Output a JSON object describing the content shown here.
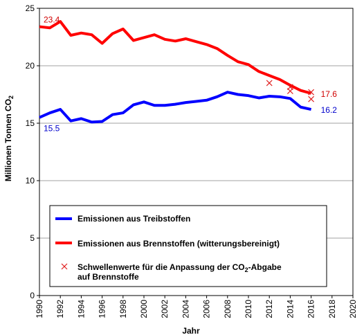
{
  "chart_data": {
    "type": "line",
    "xlabel": "Jahr",
    "ylabel_main": "Millionen Tonnen CO",
    "ylabel_sub": "2",
    "xlim": [
      1990,
      2020
    ],
    "ylim": [
      0,
      25
    ],
    "x_ticks": [
      "1990",
      "1992",
      "1994",
      "1996",
      "1998",
      "2000",
      "2002",
      "2004",
      "2006",
      "2008",
      "2010",
      "2012",
      "2014",
      "2016",
      "2018",
      "2020"
    ],
    "y_ticks": [
      "0",
      "5",
      "10",
      "15",
      "20",
      "25"
    ],
    "grid": "horizontal",
    "series": [
      {
        "name": "Emissionen aus Treibstoffen",
        "color": "#0000ff",
        "x": [
          1990,
          1991,
          1992,
          1993,
          1994,
          1995,
          1996,
          1997,
          1998,
          1999,
          2000,
          2001,
          2002,
          2003,
          2004,
          2005,
          2006,
          2007,
          2008,
          2009,
          2010,
          2011,
          2012,
          2013,
          2014,
          2015,
          2016
        ],
        "values": [
          15.5,
          15.9,
          16.2,
          15.2,
          15.4,
          15.1,
          15.15,
          15.75,
          15.9,
          16.6,
          16.85,
          16.55,
          16.55,
          16.65,
          16.8,
          16.9,
          17.0,
          17.3,
          17.7,
          17.5,
          17.4,
          17.2,
          17.35,
          17.3,
          17.15,
          16.4,
          16.2
        ]
      },
      {
        "name": "Emissionen aus Brennstoffen (witterungsbereinigt)",
        "color": "#ff0000",
        "x": [
          1990,
          1991,
          1992,
          1993,
          1994,
          1995,
          1996,
          1997,
          1998,
          1999,
          2000,
          2001,
          2002,
          2003,
          2004,
          2005,
          2006,
          2007,
          2008,
          2009,
          2010,
          2011,
          2012,
          2013,
          2014,
          2015,
          2016
        ],
        "values": [
          23.4,
          23.3,
          23.85,
          22.65,
          22.85,
          22.7,
          21.95,
          22.8,
          23.2,
          22.2,
          22.45,
          22.7,
          22.3,
          22.15,
          22.35,
          22.1,
          21.85,
          21.5,
          20.9,
          20.35,
          20.1,
          19.5,
          19.15,
          18.8,
          18.3,
          17.85,
          17.6
        ]
      },
      {
        "name": "Schwellenwerte für die Anpassung  der CO",
        "name_sub": "2",
        "name_tail": "-Abgabe",
        "name_line2": "auf Brennstoffe",
        "color": "#e02020",
        "marker": "x",
        "x": [
          2012,
          2014,
          2014,
          2016,
          2016
        ],
        "values": [
          18.5,
          18.15,
          17.8,
          17.7,
          17.1
        ]
      }
    ],
    "annotations": [
      {
        "text": "23.4",
        "x": 1990,
        "y": 23.4,
        "color": "#d00000"
      },
      {
        "text": "15.5",
        "x": 1990,
        "y": 15.5,
        "color": "#0000cc"
      },
      {
        "text": "17.6",
        "x": 2016,
        "y": 17.6,
        "color": "#d00000"
      },
      {
        "text": "16.2",
        "x": 2016,
        "y": 16.2,
        "color": "#0000cc"
      }
    ],
    "legend_placement": "bottom-center-inside"
  }
}
